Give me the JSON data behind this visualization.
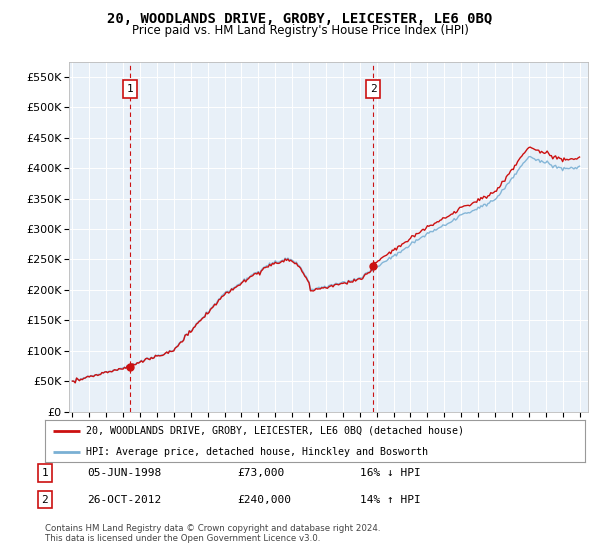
{
  "title": "20, WOODLANDS DRIVE, GROBY, LEICESTER, LE6 0BQ",
  "subtitle": "Price paid vs. HM Land Registry's House Price Index (HPI)",
  "legend_line1": "20, WOODLANDS DRIVE, GROBY, LEICESTER, LE6 0BQ (detached house)",
  "legend_line2": "HPI: Average price, detached house, Hinckley and Bosworth",
  "annotation1_date": "05-JUN-1998",
  "annotation1_price": "£73,000",
  "annotation1_hpi": "16% ↓ HPI",
  "annotation1_year": 1998.42,
  "annotation1_value": 73000,
  "annotation2_date": "26-OCT-2012",
  "annotation2_price": "£240,000",
  "annotation2_hpi": "14% ↑ HPI",
  "annotation2_year": 2012.79,
  "annotation2_value": 240000,
  "footer": "Contains HM Land Registry data © Crown copyright and database right 2024.\nThis data is licensed under the Open Government Licence v3.0.",
  "hpi_color": "#7ab0d4",
  "price_color": "#cc1111",
  "dashed_color": "#cc1111",
  "plot_bg": "#e8f0f8",
  "ylim": [
    0,
    575000
  ],
  "yticks": [
    0,
    50000,
    100000,
    150000,
    200000,
    250000,
    300000,
    350000,
    400000,
    450000,
    500000,
    550000
  ],
  "xmin": 1994.8,
  "xmax": 2025.5,
  "xticks": [
    1995,
    1996,
    1997,
    1998,
    1999,
    2000,
    2001,
    2002,
    2003,
    2004,
    2005,
    2006,
    2007,
    2008,
    2009,
    2010,
    2011,
    2012,
    2013,
    2014,
    2015,
    2016,
    2017,
    2018,
    2019,
    2020,
    2021,
    2022,
    2023,
    2024,
    2025
  ]
}
